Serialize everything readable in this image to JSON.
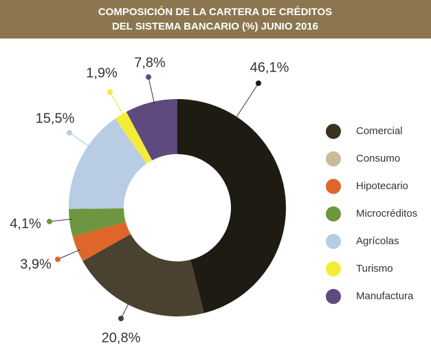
{
  "chart_data": {
    "type": "donut",
    "title": [
      "COMPOSICIÓN DE LA CARTERA DE CRÉDITOS",
      "DEL SISTEMA BANCARIO (%) JUNIO 2016"
    ],
    "categories": [
      "Comercial",
      "Consumo",
      "Hipotecario",
      "Microcréditos",
      "Agrícolas",
      "Turismo",
      "Manufactura"
    ],
    "values": [
      46.1,
      20.8,
      3.9,
      4.1,
      15.5,
      1.9,
      7.8
    ],
    "value_labels": [
      "46,1%",
      "20,8%",
      "3,9%",
      "4,1%",
      "15,5%",
      "1,9%",
      "7,8%"
    ],
    "colors": [
      "#1e1b13",
      "#4a4130",
      "#e0652a",
      "#6e9640",
      "#b8cce4",
      "#f5ec3a",
      "#5e4a7e"
    ],
    "legend_colors": [
      "#3b3222",
      "#c8bd98",
      "#e0652a",
      "#6e9640",
      "#b8cce4",
      "#f5ec3a",
      "#5e4a7e"
    ],
    "legend": "right"
  }
}
